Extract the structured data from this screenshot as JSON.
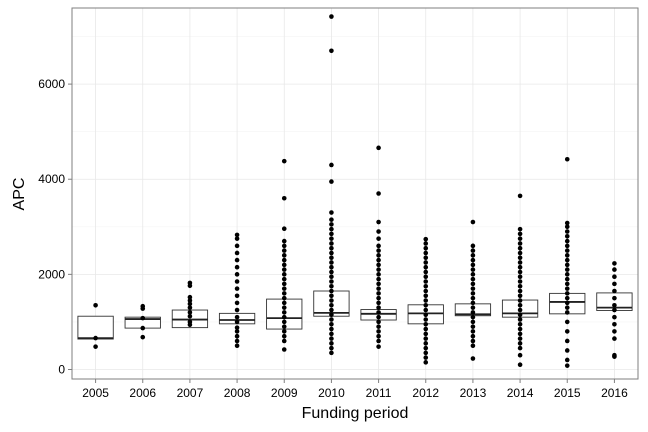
{
  "chart_data": {
    "type": "box",
    "xlabel": "Funding period",
    "ylabel": "APC",
    "ylim": [
      -200,
      7600
    ],
    "yticks": [
      0,
      2000,
      4000,
      6000
    ],
    "grid": true,
    "categories": [
      "2005",
      "2006",
      "2007",
      "2008",
      "2009",
      "2010",
      "2011",
      "2012",
      "2013",
      "2014",
      "2015",
      "2016"
    ],
    "boxes": [
      {
        "q1": 640,
        "median": 660,
        "q3": 1120,
        "whisker_low": 640,
        "whisker_high": 1120,
        "points": [
          480,
          660,
          1350
        ]
      },
      {
        "q1": 870,
        "median": 1060,
        "q3": 1100,
        "whisker_low": 870,
        "whisker_high": 1100,
        "points": [
          680,
          870,
          1080,
          1280,
          1330
        ]
      },
      {
        "q1": 880,
        "median": 1050,
        "q3": 1250,
        "whisker_low": 880,
        "whisker_high": 1250,
        "points": [
          940,
          1000,
          1120,
          1200,
          1300,
          1380,
          1450,
          1520,
          1760,
          1820
        ]
      },
      {
        "q1": 960,
        "median": 1040,
        "q3": 1180,
        "whisker_low": 960,
        "whisker_high": 1180,
        "points": [
          500,
          600,
          700,
          800,
          880,
          1000,
          1100,
          1250,
          1400,
          1550,
          1700,
          1850,
          2000,
          2150,
          2300,
          2450,
          2600,
          2750,
          2830
        ]
      },
      {
        "q1": 850,
        "median": 1080,
        "q3": 1480,
        "whisker_low": 850,
        "whisker_high": 1480,
        "points": [
          420,
          600,
          700,
          800,
          900,
          1000,
          1100,
          1200,
          1300,
          1400,
          1500,
          1600,
          1700,
          1800,
          1900,
          2000,
          2100,
          2200,
          2300,
          2400,
          2500,
          2600,
          2700,
          2960,
          3600,
          4380
        ]
      },
      {
        "q1": 1120,
        "median": 1190,
        "q3": 1650,
        "whisker_low": 1120,
        "whisker_high": 1650,
        "points": [
          350,
          450,
          550,
          650,
          750,
          850,
          950,
          1050,
          1150,
          1250,
          1350,
          1450,
          1550,
          1650,
          1750,
          1850,
          1950,
          2050,
          2150,
          2250,
          2350,
          2450,
          2550,
          2650,
          2750,
          2850,
          2950,
          3050,
          3150,
          3300,
          3950,
          4300,
          6700,
          7420
        ]
      },
      {
        "q1": 1040,
        "median": 1170,
        "q3": 1260,
        "whisker_low": 1040,
        "whisker_high": 1260,
        "points": [
          480,
          600,
          700,
          800,
          900,
          1000,
          1100,
          1200,
          1300,
          1400,
          1500,
          1600,
          1700,
          1800,
          1900,
          2000,
          2100,
          2200,
          2300,
          2400,
          2500,
          2600,
          2750,
          2900,
          3100,
          3700,
          4660
        ]
      },
      {
        "q1": 960,
        "median": 1180,
        "q3": 1360,
        "whisker_low": 960,
        "whisker_high": 1360,
        "points": [
          150,
          250,
          350,
          450,
          550,
          650,
          750,
          850,
          950,
          1050,
          1150,
          1250,
          1350,
          1450,
          1550,
          1650,
          1750,
          1850,
          1950,
          2050,
          2150,
          2250,
          2350,
          2450,
          2550,
          2650,
          2740
        ]
      },
      {
        "q1": 1130,
        "median": 1160,
        "q3": 1380,
        "whisker_low": 1130,
        "whisker_high": 1380,
        "points": [
          230,
          500,
          600,
          700,
          800,
          900,
          1000,
          1100,
          1200,
          1300,
          1400,
          1500,
          1600,
          1700,
          1800,
          1900,
          2000,
          2100,
          2200,
          2300,
          2400,
          2500,
          2600,
          3100
        ]
      },
      {
        "q1": 1100,
        "median": 1180,
        "q3": 1460,
        "whisker_low": 1100,
        "whisker_high": 1460,
        "points": [
          100,
          300,
          450,
          550,
          650,
          750,
          850,
          950,
          1050,
          1150,
          1250,
          1350,
          1450,
          1550,
          1650,
          1750,
          1850,
          1950,
          2050,
          2150,
          2250,
          2350,
          2450,
          2550,
          2650,
          2750,
          2850,
          2950,
          3650
        ]
      },
      {
        "q1": 1170,
        "median": 1420,
        "q3": 1600,
        "whisker_low": 1170,
        "whisker_high": 1600,
        "points": [
          80,
          200,
          400,
          600,
          800,
          1000,
          1200,
          1300,
          1400,
          1500,
          1600,
          1700,
          1800,
          1900,
          2000,
          2100,
          2200,
          2300,
          2400,
          2500,
          2600,
          2700,
          2800,
          2900,
          3000,
          3080,
          4420
        ]
      },
      {
        "q1": 1240,
        "median": 1300,
        "q3": 1610,
        "whisker_low": 1240,
        "whisker_high": 1610,
        "points": [
          270,
          300,
          650,
          800,
          950,
          1100,
          1250,
          1350,
          1500,
          1650,
          1800,
          1950,
          2100,
          2230
        ]
      }
    ]
  }
}
